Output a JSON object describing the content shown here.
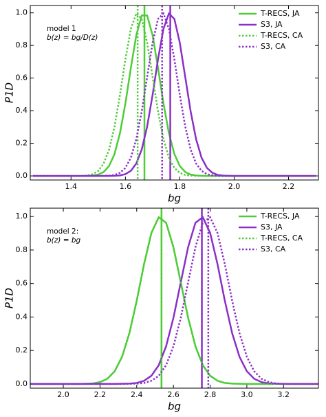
{
  "chart_data": [
    {
      "type": "line",
      "annotation": [
        "model 1",
        "b(z) = bg/D(z)"
      ],
      "xlabel": "bg",
      "ylabel": "P1D",
      "x": [
        1.26,
        1.4,
        1.42,
        1.44,
        1.46,
        1.48,
        1.5,
        1.52,
        1.54,
        1.56,
        1.58,
        1.6,
        1.62,
        1.64,
        1.66,
        1.68,
        1.7,
        1.72,
        1.74,
        1.76,
        1.78,
        1.8,
        1.82,
        1.84,
        1.86,
        1.88,
        1.9,
        1.92,
        1.94,
        1.96,
        1.98,
        2.0,
        2.3
      ],
      "series": [
        {
          "name": "T-RECS, JA",
          "color": "#4ccd36",
          "linestyle": "solid",
          "vline": 1.67,
          "values": [
            0,
            0,
            0,
            0,
            0.001,
            0.003,
            0.008,
            0.024,
            0.061,
            0.135,
            0.262,
            0.445,
            0.662,
            0.862,
            0.984,
            0.984,
            0.862,
            0.662,
            0.445,
            0.262,
            0.135,
            0.061,
            0.024,
            0.008,
            0.003,
            0.001,
            0,
            0,
            0,
            0,
            0,
            0,
            0
          ]
        },
        {
          "name": "S3, JA",
          "color": "#8a2fc8",
          "linestyle": "solid",
          "vline": 1.765,
          "values": [
            0,
            0,
            0,
            0,
            0,
            0,
            0,
            0,
            0,
            0.001,
            0.003,
            0.011,
            0.031,
            0.076,
            0.162,
            0.303,
            0.497,
            0.716,
            0.902,
            0.996,
            0.963,
            0.817,
            0.607,
            0.395,
            0.225,
            0.112,
            0.049,
            0.019,
            0.006,
            0.002,
            0.001,
            0,
            0
          ]
        },
        {
          "name": "T-RECS, CA",
          "color": "#4ccd36",
          "linestyle": "dotted",
          "vline": 1.645,
          "values": [
            0,
            0,
            0,
            0.001,
            0.003,
            0.011,
            0.031,
            0.076,
            0.162,
            0.303,
            0.497,
            0.716,
            0.902,
            0.996,
            0.963,
            0.817,
            0.607,
            0.395,
            0.225,
            0.112,
            0.049,
            0.019,
            0.006,
            0.002,
            0.001,
            0,
            0,
            0,
            0,
            0,
            0,
            0,
            0
          ]
        },
        {
          "name": "S3, CA",
          "color": "#8a2fc8",
          "linestyle": "dotted",
          "vline": 1.735,
          "values": [
            0,
            0,
            0,
            0,
            0,
            0,
            0,
            0.001,
            0.002,
            0.006,
            0.019,
            0.049,
            0.112,
            0.225,
            0.395,
            0.607,
            0.817,
            0.963,
            0.996,
            0.902,
            0.716,
            0.497,
            0.303,
            0.162,
            0.076,
            0.031,
            0.011,
            0.003,
            0.001,
            0,
            0,
            0,
            0
          ]
        }
      ],
      "xlim": [
        1.25,
        2.31
      ],
      "xticks": [
        1.4,
        1.6,
        1.8,
        {
          "value": 2,
          "label": "2.0"
        },
        2.2
      ],
      "ylim": [
        -0.025,
        1.045
      ],
      "yticks": [
        {
          "value": 0,
          "label": "0.0"
        },
        {
          "value": 0.2,
          "label": "0.2"
        },
        {
          "value": 0.4,
          "label": "0.4"
        },
        {
          "value": 0.6,
          "label": "0.6"
        },
        {
          "value": 0.8,
          "label": "0.8"
        },
        {
          "value": 1,
          "label": "1.0"
        }
      ]
    },
    {
      "type": "line",
      "annotation": [
        "model 2:",
        "b(z) = bg"
      ],
      "xlabel": "bg",
      "ylabel": "P1D",
      "x": [
        1.82,
        2.0,
        2.04,
        2.08,
        2.12,
        2.16,
        2.2,
        2.24,
        2.28,
        2.32,
        2.36,
        2.4,
        2.44,
        2.48,
        2.52,
        2.56,
        2.6,
        2.64,
        2.68,
        2.72,
        2.76,
        2.8,
        2.84,
        2.88,
        2.92,
        2.96,
        3.0,
        3.04,
        3.08,
        3.12,
        3.16,
        3.2,
        3.39
      ],
      "series": [
        {
          "name": "T-RECS, JA",
          "color": "#4ccd36",
          "linestyle": "solid",
          "vline": 2.535,
          "values": [
            0,
            0,
            0,
            0,
            0.001,
            0.003,
            0.011,
            0.031,
            0.076,
            0.162,
            0.303,
            0.497,
            0.716,
            0.902,
            0.996,
            0.963,
            0.817,
            0.607,
            0.395,
            0.225,
            0.112,
            0.049,
            0.019,
            0.006,
            0.002,
            0.001,
            0,
            0,
            0,
            0,
            0,
            0,
            0
          ]
        },
        {
          "name": "S3, JA",
          "color": "#8a2fc8",
          "linestyle": "solid",
          "vline": 2.755,
          "values": [
            0,
            0,
            0,
            0,
            0,
            0,
            0,
            0,
            0,
            0.001,
            0.002,
            0.006,
            0.019,
            0.049,
            0.112,
            0.225,
            0.395,
            0.607,
            0.817,
            0.963,
            0.996,
            0.902,
            0.716,
            0.497,
            0.303,
            0.162,
            0.076,
            0.031,
            0.011,
            0.003,
            0.001,
            0,
            0
          ]
        },
        {
          "name": "T-RECS, CA",
          "color": "#4ccd36",
          "linestyle": "dotted",
          "vline": 2.535,
          "values": [
            0,
            0,
            0,
            0,
            0.001,
            0.003,
            0.011,
            0.031,
            0.076,
            0.162,
            0.303,
            0.497,
            0.716,
            0.902,
            0.996,
            0.963,
            0.817,
            0.607,
            0.395,
            0.225,
            0.112,
            0.049,
            0.019,
            0.006,
            0.002,
            0.001,
            0,
            0,
            0,
            0,
            0,
            0,
            0
          ]
        },
        {
          "name": "S3, CA",
          "color": "#8a2fc8",
          "linestyle": "dotted",
          "vline": 2.79,
          "values": [
            0,
            0,
            0,
            0,
            0,
            0,
            0,
            0,
            0,
            0,
            0.001,
            0.002,
            0.006,
            0.019,
            0.049,
            0.112,
            0.225,
            0.395,
            0.607,
            0.817,
            0.963,
            0.996,
            0.902,
            0.716,
            0.497,
            0.303,
            0.162,
            0.076,
            0.031,
            0.011,
            0.003,
            0.001,
            0
          ]
        }
      ],
      "xlim": [
        1.82,
        3.39
      ],
      "xticks": [
        {
          "value": 2,
          "label": "2.0"
        },
        2.2,
        2.4,
        2.6,
        2.8,
        {
          "value": 3,
          "label": "3.0"
        },
        3.2
      ],
      "ylim": [
        -0.025,
        1.05
      ],
      "yticks": [
        {
          "value": 0,
          "label": "0.0"
        },
        {
          "value": 0.2,
          "label": "0.2"
        },
        {
          "value": 0.4,
          "label": "0.4"
        },
        {
          "value": 0.6,
          "label": "0.6"
        },
        {
          "value": 0.8,
          "label": "0.8"
        },
        {
          "value": 1,
          "label": "1.0"
        }
      ]
    }
  ]
}
